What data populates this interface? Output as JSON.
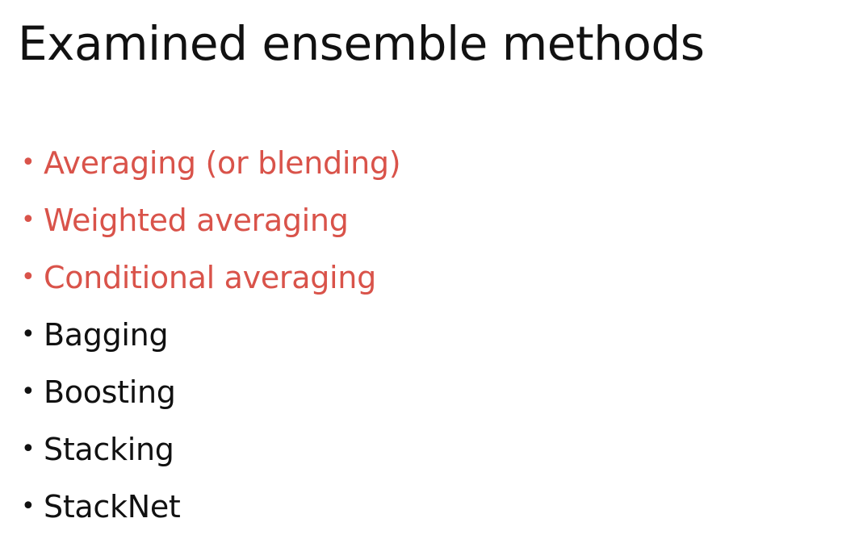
{
  "slide": {
    "title": "Examined ensemble methods",
    "bullet_symbol": "•",
    "colors": {
      "highlight": "#d9534a",
      "normal": "#111111",
      "background": "#ffffff"
    },
    "items": [
      {
        "label": "Averaging (or blending)",
        "highlighted": true
      },
      {
        "label": "Weighted averaging",
        "highlighted": true
      },
      {
        "label": "Conditional averaging",
        "highlighted": true
      },
      {
        "label": "Bagging",
        "highlighted": false
      },
      {
        "label": "Boosting",
        "highlighted": false
      },
      {
        "label": "Stacking",
        "highlighted": false
      },
      {
        "label": "StackNet",
        "highlighted": false
      }
    ]
  }
}
